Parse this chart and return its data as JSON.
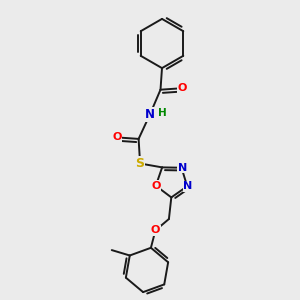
{
  "background_color": "#ebebeb",
  "bond_color": "#1a1a1a",
  "bond_width": 1.4,
  "figsize": [
    3.0,
    3.0
  ],
  "dpi": 100,
  "atom_colors": {
    "O": "#ff0000",
    "N": "#0000cc",
    "S": "#ccaa00",
    "H": "#008800",
    "C": "#1a1a1a"
  }
}
